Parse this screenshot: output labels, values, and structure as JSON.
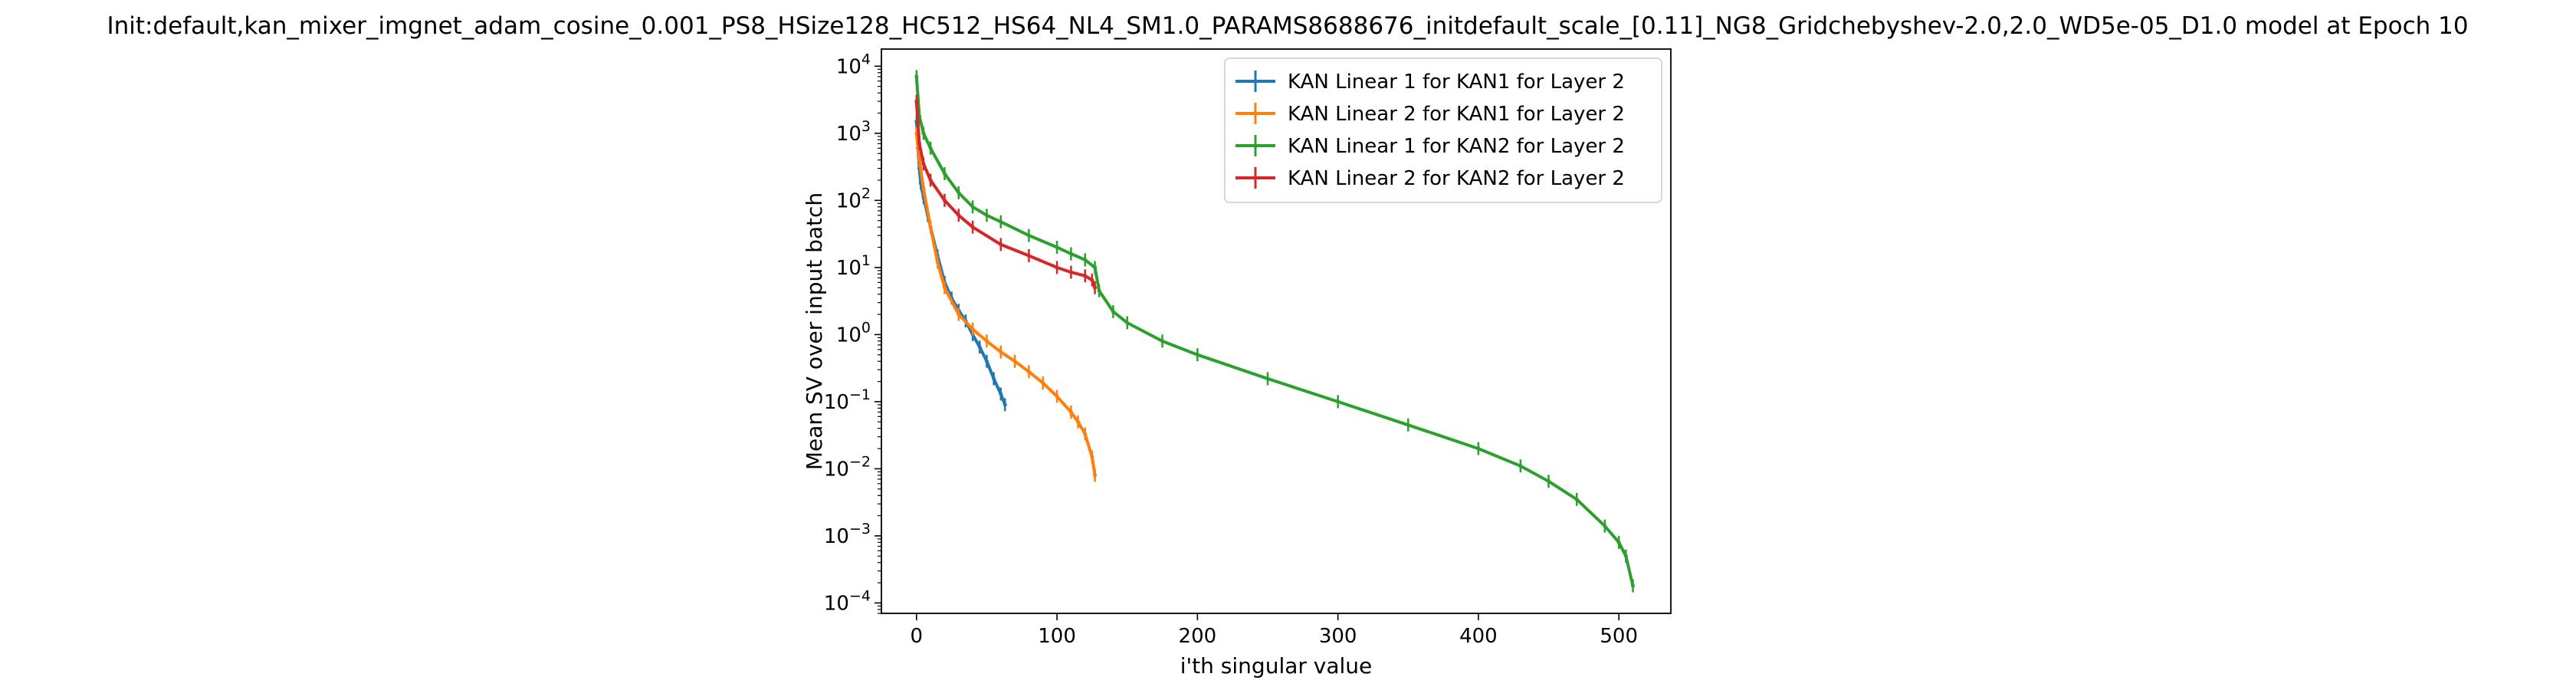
{
  "chart_data": {
    "type": "line",
    "title": "Init:default,kan_mixer_imgnet_adam_cosine_0.001_PS8_HSize128_HC512_HS64_NL4_SM1.0_PARAMS8688676_initdefault_scale_[0.11]_NG8_Gridchebyshev-2.0,2.0_WD5e-05_D1.0 model at Epoch 10",
    "xlabel": "i'th singular value",
    "ylabel": "Mean SV over input batch",
    "xlim": [
      -25,
      537
    ],
    "ylim": [
      7e-05,
      18000
    ],
    "yscale": "log",
    "xticks": [
      {
        "value": 0,
        "label": "0"
      },
      {
        "value": 100,
        "label": "100"
      },
      {
        "value": 200,
        "label": "200"
      },
      {
        "value": 300,
        "label": "300"
      },
      {
        "value": 400,
        "label": "400"
      },
      {
        "value": 500,
        "label": "500"
      }
    ],
    "yticks": [
      {
        "value": 0.0001,
        "base": "10",
        "exp": "−4"
      },
      {
        "value": 0.001,
        "base": "10",
        "exp": "−3"
      },
      {
        "value": 0.01,
        "base": "10",
        "exp": "−2"
      },
      {
        "value": 0.1,
        "base": "10",
        "exp": "−1"
      },
      {
        "value": 1,
        "base": "10",
        "exp": "0"
      },
      {
        "value": 10,
        "base": "10",
        "exp": "1"
      },
      {
        "value": 100,
        "base": "10",
        "exp": "2"
      },
      {
        "value": 1000,
        "base": "10",
        "exp": "3"
      },
      {
        "value": 10000,
        "base": "10",
        "exp": "4"
      }
    ],
    "legend_position": "top-right",
    "error_bars": true,
    "series": [
      {
        "name": "KAN Linear 1 for KAN1 for Layer 2",
        "color": "#1f77b4",
        "x": [
          0,
          1,
          2,
          3,
          5,
          8,
          10,
          15,
          20,
          25,
          30,
          35,
          40,
          45,
          50,
          55,
          60,
          63
        ],
        "y": [
          1500,
          600,
          300,
          180,
          110,
          60,
          40,
          15,
          6,
          3.5,
          2.3,
          1.6,
          1.0,
          0.65,
          0.4,
          0.22,
          0.13,
          0.09
        ]
      },
      {
        "name": "KAN Linear 2 for KAN1 for Layer 2",
        "color": "#ff7f0e",
        "x": [
          0,
          2,
          5,
          10,
          15,
          20,
          30,
          40,
          50,
          60,
          70,
          80,
          90,
          100,
          110,
          115,
          120,
          125,
          127
        ],
        "y": [
          1000,
          400,
          150,
          40,
          12,
          5,
          2.0,
          1.2,
          0.8,
          0.55,
          0.4,
          0.28,
          0.19,
          0.12,
          0.07,
          0.05,
          0.033,
          0.015,
          0.008
        ]
      },
      {
        "name": "KAN Linear 1 for KAN2 for Layer 2",
        "color": "#2ca02c",
        "x": [
          0,
          2,
          5,
          10,
          20,
          30,
          40,
          50,
          60,
          80,
          100,
          110,
          120,
          127,
          130,
          140,
          150,
          175,
          200,
          250,
          300,
          350,
          400,
          430,
          450,
          470,
          490,
          500,
          505,
          510
        ],
        "y": [
          7000,
          1800,
          1000,
          600,
          250,
          130,
          80,
          60,
          48,
          30,
          20,
          16,
          13,
          10,
          4.5,
          2.2,
          1.5,
          0.8,
          0.5,
          0.22,
          0.1,
          0.045,
          0.02,
          0.011,
          0.0065,
          0.0035,
          0.0014,
          0.0008,
          0.0005,
          0.00018
        ]
      },
      {
        "name": "KAN Linear 2 for KAN2 for Layer 2",
        "color": "#d62728",
        "x": [
          0,
          2,
          5,
          10,
          20,
          30,
          40,
          60,
          80,
          100,
          110,
          120,
          125,
          127
        ],
        "y": [
          3000,
          700,
          350,
          200,
          100,
          60,
          40,
          22,
          15,
          10,
          8.5,
          7.5,
          6.5,
          5
        ]
      }
    ]
  }
}
